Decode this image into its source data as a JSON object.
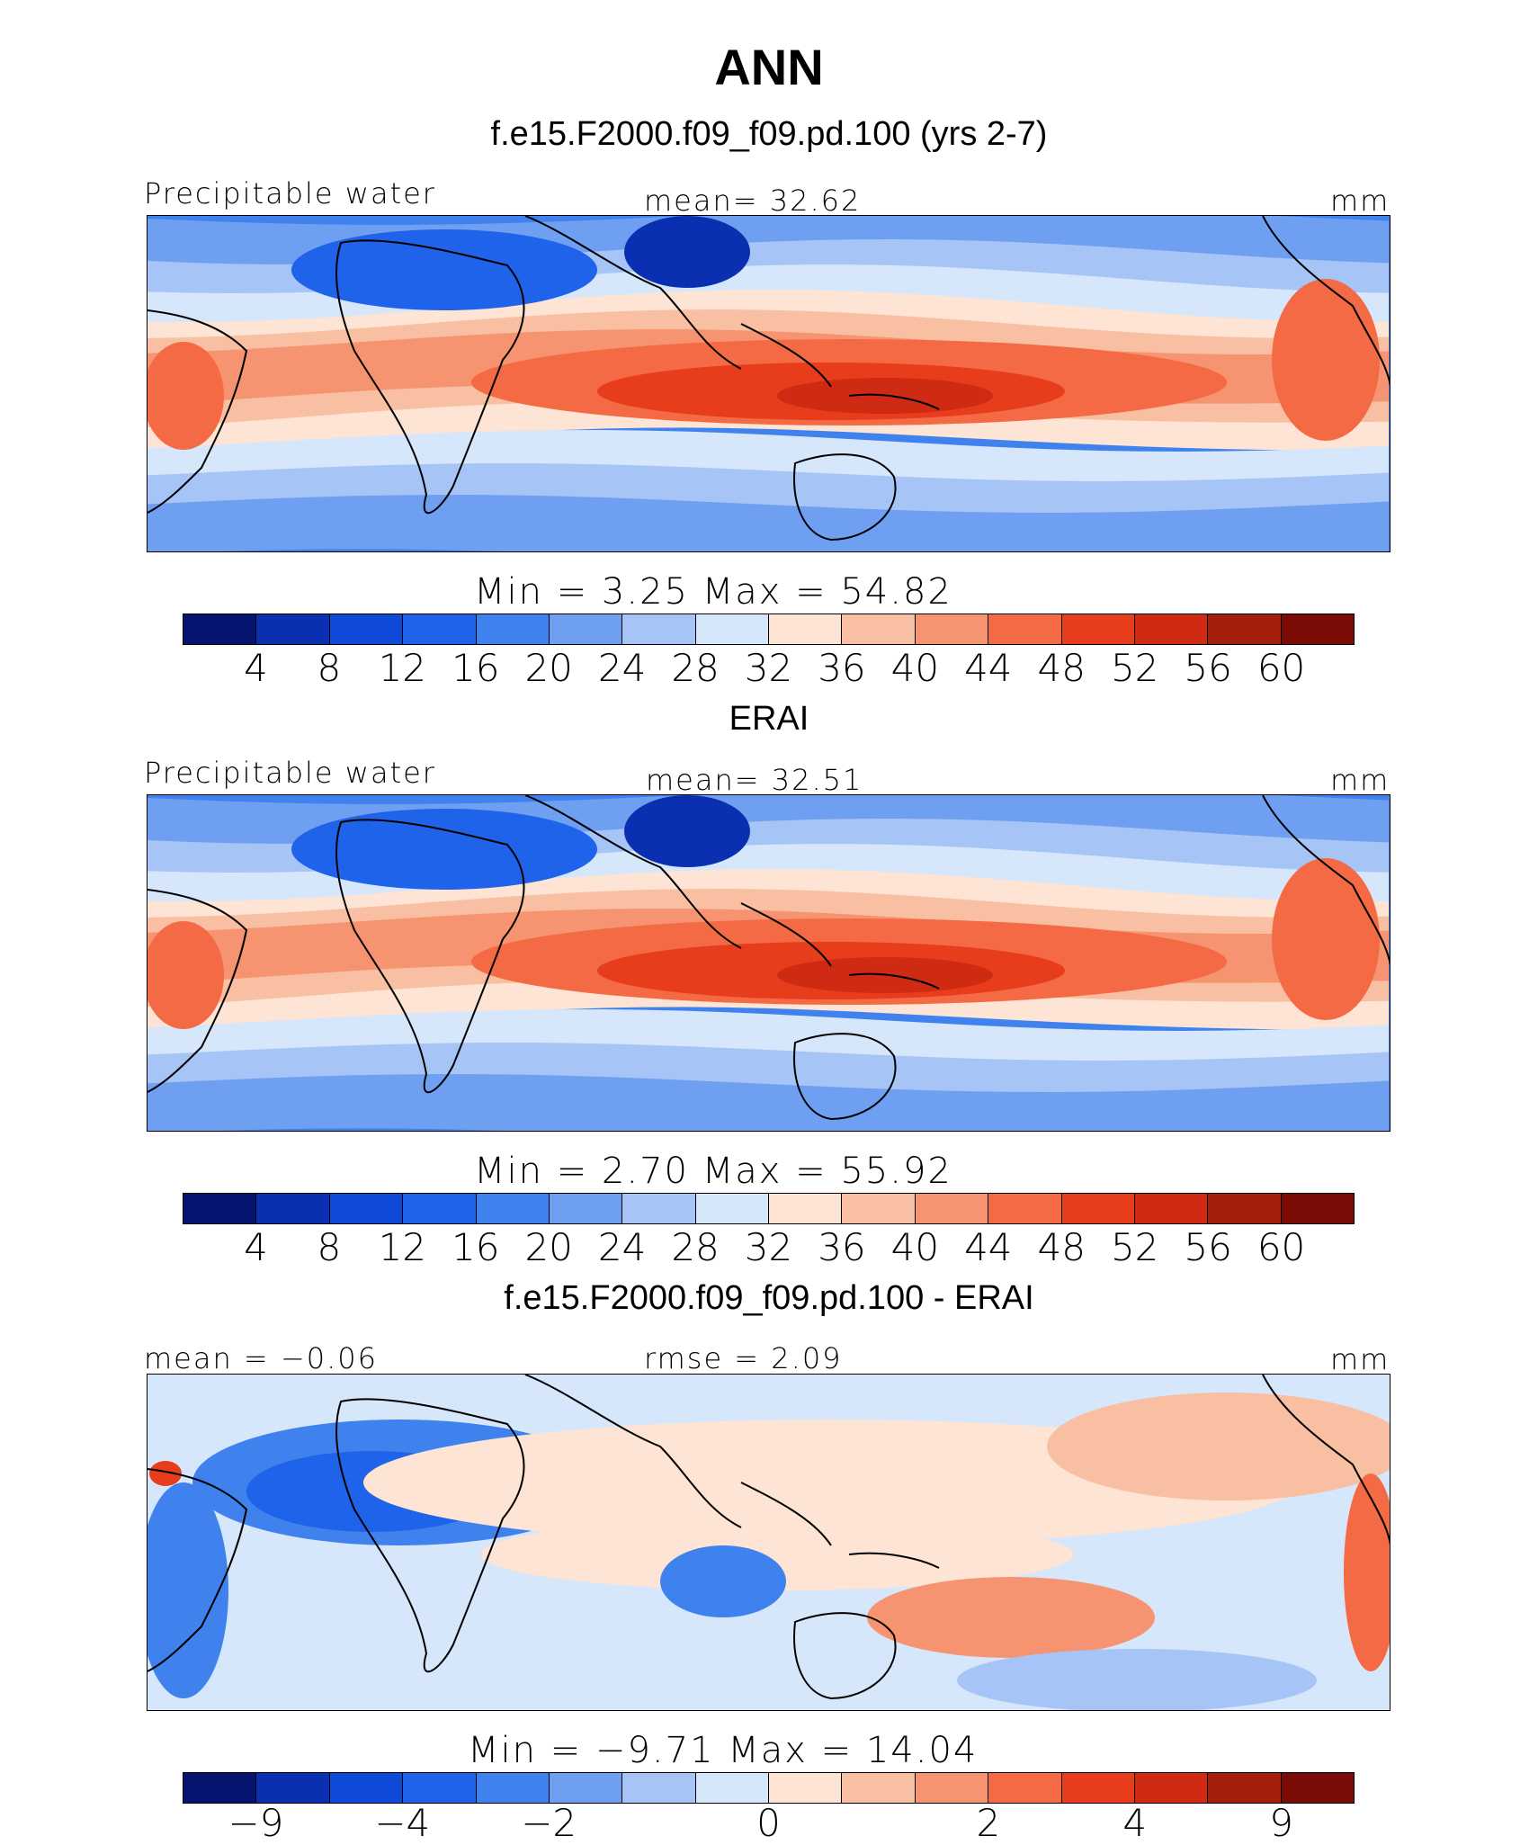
{
  "figure": {
    "title": "ANN"
  },
  "palette": [
    "#061470",
    "#0a2fb0",
    "#0f49d8",
    "#1f63ea",
    "#3f82ee",
    "#6e9ff0",
    "#a6c4f5",
    "#d6e6fb",
    "#fde4d4",
    "#f9bfa2",
    "#f69472",
    "#f36a44",
    "#e83d1d",
    "#cf2a12",
    "#a61e0c",
    "#7a0c05"
  ],
  "chart_data": [
    {
      "type": "heatmap",
      "panel_title": "f.e15.F2000.f09_f09.pd.100 (yrs 2-7)",
      "left_label": "Precipitable water",
      "center_label": "mean=   32.62",
      "right_label": "mm",
      "minmax": "Min  =     3.25  Max  =    54.82",
      "stats": {
        "mean": 32.62,
        "min": 3.25,
        "max": 54.82
      },
      "colorbar_ticks": [
        "4",
        "8",
        "12",
        "16",
        "20",
        "24",
        "28",
        "32",
        "36",
        "40",
        "44",
        "48",
        "52",
        "56",
        "60"
      ],
      "levels": [
        4,
        8,
        12,
        16,
        20,
        24,
        28,
        32,
        36,
        40,
        44,
        48,
        52,
        56,
        60
      ],
      "units": "mm",
      "field": "Precipitable water"
    },
    {
      "type": "heatmap",
      "panel_title": "ERAI",
      "left_label": "Precipitable water",
      "center_label": "mean=   32.51",
      "right_label": "mm",
      "minmax": "Min  =     2.70  Max  =    55.92",
      "stats": {
        "mean": 32.51,
        "min": 2.7,
        "max": 55.92
      },
      "colorbar_ticks": [
        "4",
        "8",
        "12",
        "16",
        "20",
        "24",
        "28",
        "32",
        "36",
        "40",
        "44",
        "48",
        "52",
        "56",
        "60"
      ],
      "levels": [
        4,
        8,
        12,
        16,
        20,
        24,
        28,
        32,
        36,
        40,
        44,
        48,
        52,
        56,
        60
      ],
      "units": "mm",
      "field": "Precipitable water"
    },
    {
      "type": "heatmap",
      "panel_title": "f.e15.F2000.f09_f09.pd.100 - ERAI",
      "left_label": "mean  =   −0.06",
      "center_label": "rmse  =     2.09",
      "right_label": "mm",
      "minmax": "Min  =   −9.71  Max  =    14.04",
      "stats": {
        "mean": -0.06,
        "rmse": 2.09,
        "min": -9.71,
        "max": 14.04
      },
      "colorbar_ticks": [
        "−9",
        "−4",
        "−2",
        "0",
        "2",
        "4",
        "9"
      ],
      "levels": [
        -9,
        -6,
        -4,
        -3,
        -2,
        -1,
        0,
        1,
        2,
        3,
        4,
        6,
        9
      ],
      "units": "mm",
      "field": "Precipitable water difference"
    }
  ]
}
